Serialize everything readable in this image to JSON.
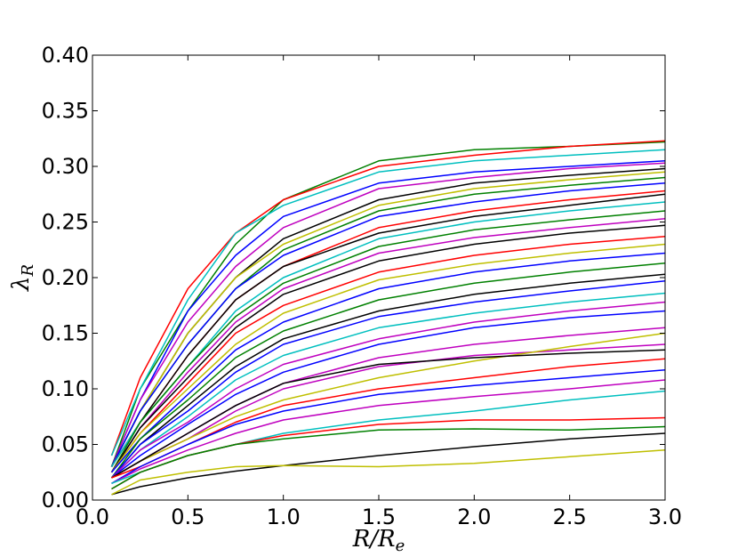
{
  "chart_data": {
    "type": "line",
    "xlabel": "R/R_e",
    "ylabel": "λ_R",
    "xlim": [
      0.0,
      3.0
    ],
    "ylim": [
      0.0,
      0.4
    ],
    "xticks": [
      "0.0",
      "0.5",
      "1.0",
      "1.5",
      "2.0",
      "2.5",
      "3.0"
    ],
    "yticks": [
      "0.00",
      "0.05",
      "0.10",
      "0.15",
      "0.20",
      "0.25",
      "0.30",
      "0.35",
      "0.40"
    ],
    "grid": false,
    "legend": "none",
    "colors": [
      "#0000ff",
      "#008000",
      "#ff0000",
      "#00bfbf",
      "#bf00bf",
      "#bfbf00",
      "#000000"
    ],
    "series_count_note": "",
    "series": [
      {
        "color": "#008000",
        "x": [
          0.1,
          0.25,
          0.5,
          0.75,
          1.0,
          1.5,
          2.0,
          2.5,
          3.0
        ],
        "y": [
          0.03,
          0.1,
          0.17,
          0.23,
          0.27,
          0.305,
          0.315,
          0.318,
          0.322
        ]
      },
      {
        "color": "#ff0000",
        "x": [
          0.1,
          0.25,
          0.5,
          0.75,
          1.0,
          1.5,
          2.0,
          2.5,
          3.0
        ],
        "y": [
          0.04,
          0.11,
          0.19,
          0.24,
          0.27,
          0.3,
          0.31,
          0.318,
          0.323
        ]
      },
      {
        "color": "#00bfbf",
        "x": [
          0.1,
          0.25,
          0.5,
          0.75,
          1.0,
          1.5,
          2.0,
          2.5,
          3.0
        ],
        "y": [
          0.04,
          0.1,
          0.18,
          0.24,
          0.265,
          0.295,
          0.305,
          0.31,
          0.315
        ]
      },
      {
        "color": "#0000ff",
        "x": [
          0.1,
          0.25,
          0.5,
          0.75,
          1.0,
          1.5,
          2.0,
          2.5,
          3.0
        ],
        "y": [
          0.03,
          0.09,
          0.17,
          0.22,
          0.255,
          0.285,
          0.295,
          0.3,
          0.305
        ]
      },
      {
        "color": "#bf00bf",
        "x": [
          0.1,
          0.25,
          0.5,
          0.75,
          1.0,
          1.5,
          2.0,
          2.5,
          3.0
        ],
        "y": [
          0.03,
          0.09,
          0.16,
          0.21,
          0.245,
          0.28,
          0.29,
          0.298,
          0.303
        ]
      },
      {
        "color": "#000000",
        "x": [
          0.1,
          0.25,
          0.5,
          0.75,
          1.0,
          1.5,
          2.0,
          2.5,
          3.0
        ],
        "y": [
          0.03,
          0.08,
          0.15,
          0.2,
          0.235,
          0.27,
          0.285,
          0.292,
          0.298
        ]
      },
      {
        "color": "#bfbf00",
        "x": [
          0.1,
          0.25,
          0.5,
          0.75,
          1.0,
          1.5,
          2.0,
          2.5,
          3.0
        ],
        "y": [
          0.03,
          0.08,
          0.15,
          0.2,
          0.23,
          0.265,
          0.28,
          0.288,
          0.295
        ]
      },
      {
        "color": "#008000",
        "x": [
          0.1,
          0.25,
          0.5,
          0.75,
          1.0,
          1.5,
          2.0,
          2.5,
          3.0
        ],
        "y": [
          0.03,
          0.08,
          0.14,
          0.19,
          0.225,
          0.26,
          0.275,
          0.283,
          0.29
        ]
      },
      {
        "color": "#0000ff",
        "x": [
          0.1,
          0.25,
          0.5,
          0.75,
          1.0,
          1.5,
          2.0,
          2.5,
          3.0
        ],
        "y": [
          0.03,
          0.08,
          0.14,
          0.19,
          0.22,
          0.255,
          0.268,
          0.278,
          0.285
        ]
      },
      {
        "color": "#ff0000",
        "x": [
          0.1,
          0.25,
          0.5,
          0.75,
          1.0,
          1.5,
          2.0,
          2.5,
          3.0
        ],
        "y": [
          0.03,
          0.07,
          0.13,
          0.18,
          0.21,
          0.245,
          0.26,
          0.27,
          0.278
        ]
      },
      {
        "color": "#000000",
        "x": [
          0.1,
          0.25,
          0.5,
          0.75,
          1.0,
          1.5,
          2.0,
          2.5,
          3.0
        ],
        "y": [
          0.03,
          0.07,
          0.13,
          0.18,
          0.21,
          0.24,
          0.255,
          0.265,
          0.275
        ]
      },
      {
        "color": "#00bfbf",
        "x": [
          0.1,
          0.25,
          0.5,
          0.75,
          1.0,
          1.5,
          2.0,
          2.5,
          3.0
        ],
        "y": [
          0.03,
          0.07,
          0.12,
          0.17,
          0.2,
          0.235,
          0.25,
          0.26,
          0.268
        ]
      },
      {
        "color": "#008000",
        "x": [
          0.1,
          0.25,
          0.5,
          0.75,
          1.0,
          1.5,
          2.0,
          2.5,
          3.0
        ],
        "y": [
          0.025,
          0.07,
          0.12,
          0.165,
          0.195,
          0.228,
          0.243,
          0.252,
          0.26
        ]
      },
      {
        "color": "#bf00bf",
        "x": [
          0.1,
          0.25,
          0.5,
          0.75,
          1.0,
          1.5,
          2.0,
          2.5,
          3.0
        ],
        "y": [
          0.025,
          0.065,
          0.115,
          0.16,
          0.19,
          0.222,
          0.236,
          0.245,
          0.253
        ]
      },
      {
        "color": "#000000",
        "x": [
          0.1,
          0.25,
          0.5,
          0.75,
          1.0,
          1.5,
          2.0,
          2.5,
          3.0
        ],
        "y": [
          0.025,
          0.065,
          0.11,
          0.155,
          0.185,
          0.215,
          0.23,
          0.24,
          0.247
        ]
      },
      {
        "color": "#ff0000",
        "x": [
          0.1,
          0.25,
          0.5,
          0.75,
          1.0,
          1.5,
          2.0,
          2.5,
          3.0
        ],
        "y": [
          0.025,
          0.06,
          0.105,
          0.15,
          0.175,
          0.205,
          0.22,
          0.23,
          0.237
        ]
      },
      {
        "color": "#bfbf00",
        "x": [
          0.1,
          0.25,
          0.5,
          0.75,
          1.0,
          1.5,
          2.0,
          2.5,
          3.0
        ],
        "y": [
          0.025,
          0.06,
          0.1,
          0.14,
          0.168,
          0.198,
          0.212,
          0.222,
          0.23
        ]
      },
      {
        "color": "#0000ff",
        "x": [
          0.1,
          0.25,
          0.5,
          0.75,
          1.0,
          1.5,
          2.0,
          2.5,
          3.0
        ],
        "y": [
          0.025,
          0.055,
          0.095,
          0.135,
          0.16,
          0.19,
          0.205,
          0.215,
          0.222
        ]
      },
      {
        "color": "#008000",
        "x": [
          0.1,
          0.25,
          0.5,
          0.75,
          1.0,
          1.5,
          2.0,
          2.5,
          3.0
        ],
        "y": [
          0.02,
          0.055,
          0.09,
          0.128,
          0.152,
          0.18,
          0.195,
          0.205,
          0.213
        ]
      },
      {
        "color": "#000000",
        "x": [
          0.1,
          0.25,
          0.5,
          0.75,
          1.0,
          1.5,
          2.0,
          2.5,
          3.0
        ],
        "y": [
          0.02,
          0.05,
          0.085,
          0.12,
          0.145,
          0.17,
          0.185,
          0.195,
          0.203
        ]
      },
      {
        "color": "#0000ff",
        "x": [
          0.1,
          0.25,
          0.5,
          0.75,
          1.0,
          1.5,
          2.0,
          2.5,
          3.0
        ],
        "y": [
          0.02,
          0.05,
          0.08,
          0.115,
          0.14,
          0.165,
          0.178,
          0.188,
          0.197
        ]
      },
      {
        "color": "#00bfbf",
        "x": [
          0.1,
          0.25,
          0.5,
          0.75,
          1.0,
          1.5,
          2.0,
          2.5,
          3.0
        ],
        "y": [
          0.02,
          0.045,
          0.075,
          0.108,
          0.13,
          0.155,
          0.168,
          0.178,
          0.186
        ]
      },
      {
        "color": "#bf00bf",
        "x": [
          0.1,
          0.25,
          0.5,
          0.75,
          1.0,
          1.5,
          2.0,
          2.5,
          3.0
        ],
        "y": [
          0.02,
          0.045,
          0.07,
          0.1,
          0.122,
          0.145,
          0.16,
          0.17,
          0.178
        ]
      },
      {
        "color": "#0000ff",
        "x": [
          0.1,
          0.25,
          0.5,
          0.75,
          1.0,
          1.5,
          2.0,
          2.5,
          3.0
        ],
        "y": [
          0.02,
          0.04,
          0.068,
          0.095,
          0.115,
          0.14,
          0.155,
          0.164,
          0.17
        ]
      },
      {
        "color": "#bf00bf",
        "x": [
          0.1,
          0.25,
          0.5,
          0.75,
          1.0,
          1.5,
          2.0,
          2.5,
          3.0
        ],
        "y": [
          0.02,
          0.035,
          0.06,
          0.085,
          0.105,
          0.128,
          0.14,
          0.148,
          0.155
        ]
      },
      {
        "color": "#bf00bf",
        "x": [
          0.1,
          0.25,
          0.5,
          0.75,
          1.0,
          1.5,
          2.0,
          2.5,
          3.0
        ],
        "y": [
          0.02,
          0.035,
          0.055,
          0.08,
          0.1,
          0.12,
          0.13,
          0.135,
          0.14
        ]
      },
      {
        "color": "#bfbf00",
        "x": [
          0.1,
          0.25,
          0.5,
          0.75,
          1.0,
          1.5,
          2.0,
          2.5,
          3.0
        ],
        "y": [
          0.02,
          0.035,
          0.055,
          0.075,
          0.09,
          0.11,
          0.125,
          0.138,
          0.15
        ]
      },
      {
        "color": "#000000",
        "x": [
          0.1,
          0.25,
          0.5,
          0.75,
          1.0,
          1.5,
          2.0,
          2.5,
          3.0
        ],
        "y": [
          0.02,
          0.035,
          0.06,
          0.085,
          0.105,
          0.122,
          0.128,
          0.132,
          0.135
        ]
      },
      {
        "color": "#ff0000",
        "x": [
          0.1,
          0.25,
          0.5,
          0.75,
          1.0,
          1.5,
          2.0,
          2.5,
          3.0
        ],
        "y": [
          0.02,
          0.03,
          0.05,
          0.07,
          0.085,
          0.1,
          0.11,
          0.12,
          0.127
        ]
      },
      {
        "color": "#0000ff",
        "x": [
          0.1,
          0.25,
          0.5,
          0.75,
          1.0,
          1.5,
          2.0,
          2.5,
          3.0
        ],
        "y": [
          0.015,
          0.03,
          0.05,
          0.068,
          0.08,
          0.095,
          0.103,
          0.11,
          0.117
        ]
      },
      {
        "color": "#bf00bf",
        "x": [
          0.1,
          0.25,
          0.5,
          0.75,
          1.0,
          1.5,
          2.0,
          2.5,
          3.0
        ],
        "y": [
          0.015,
          0.028,
          0.045,
          0.06,
          0.072,
          0.085,
          0.093,
          0.1,
          0.108
        ]
      },
      {
        "color": "#00bfbf",
        "x": [
          0.1,
          0.25,
          0.5,
          0.75,
          1.0,
          1.5,
          2.0,
          2.5,
          3.0
        ],
        "y": [
          0.015,
          0.025,
          0.04,
          0.05,
          0.06,
          0.072,
          0.08,
          0.09,
          0.098
        ]
      },
      {
        "color": "#ff0000",
        "x": [
          0.1,
          0.25,
          0.5,
          0.75,
          1.0,
          1.5,
          2.0,
          2.5,
          3.0
        ],
        "y": [
          0.01,
          0.025,
          0.04,
          0.05,
          0.058,
          0.068,
          0.072,
          0.072,
          0.074
        ]
      },
      {
        "color": "#008000",
        "x": [
          0.1,
          0.25,
          0.5,
          0.75,
          1.0,
          1.5,
          2.0,
          2.5,
          3.0
        ],
        "y": [
          0.01,
          0.025,
          0.04,
          0.05,
          0.055,
          0.063,
          0.064,
          0.063,
          0.066
        ]
      },
      {
        "color": "#000000",
        "x": [
          0.1,
          0.25,
          0.5,
          0.75,
          1.0,
          1.5,
          2.0,
          2.5,
          3.0
        ],
        "y": [
          0.005,
          0.012,
          0.02,
          0.026,
          0.031,
          0.04,
          0.048,
          0.055,
          0.06
        ]
      },
      {
        "color": "#bfbf00",
        "x": [
          0.1,
          0.25,
          0.5,
          0.75,
          1.0,
          1.5,
          2.0,
          2.5,
          3.0
        ],
        "y": [
          0.005,
          0.018,
          0.025,
          0.03,
          0.031,
          0.03,
          0.033,
          0.039,
          0.045
        ]
      }
    ]
  }
}
